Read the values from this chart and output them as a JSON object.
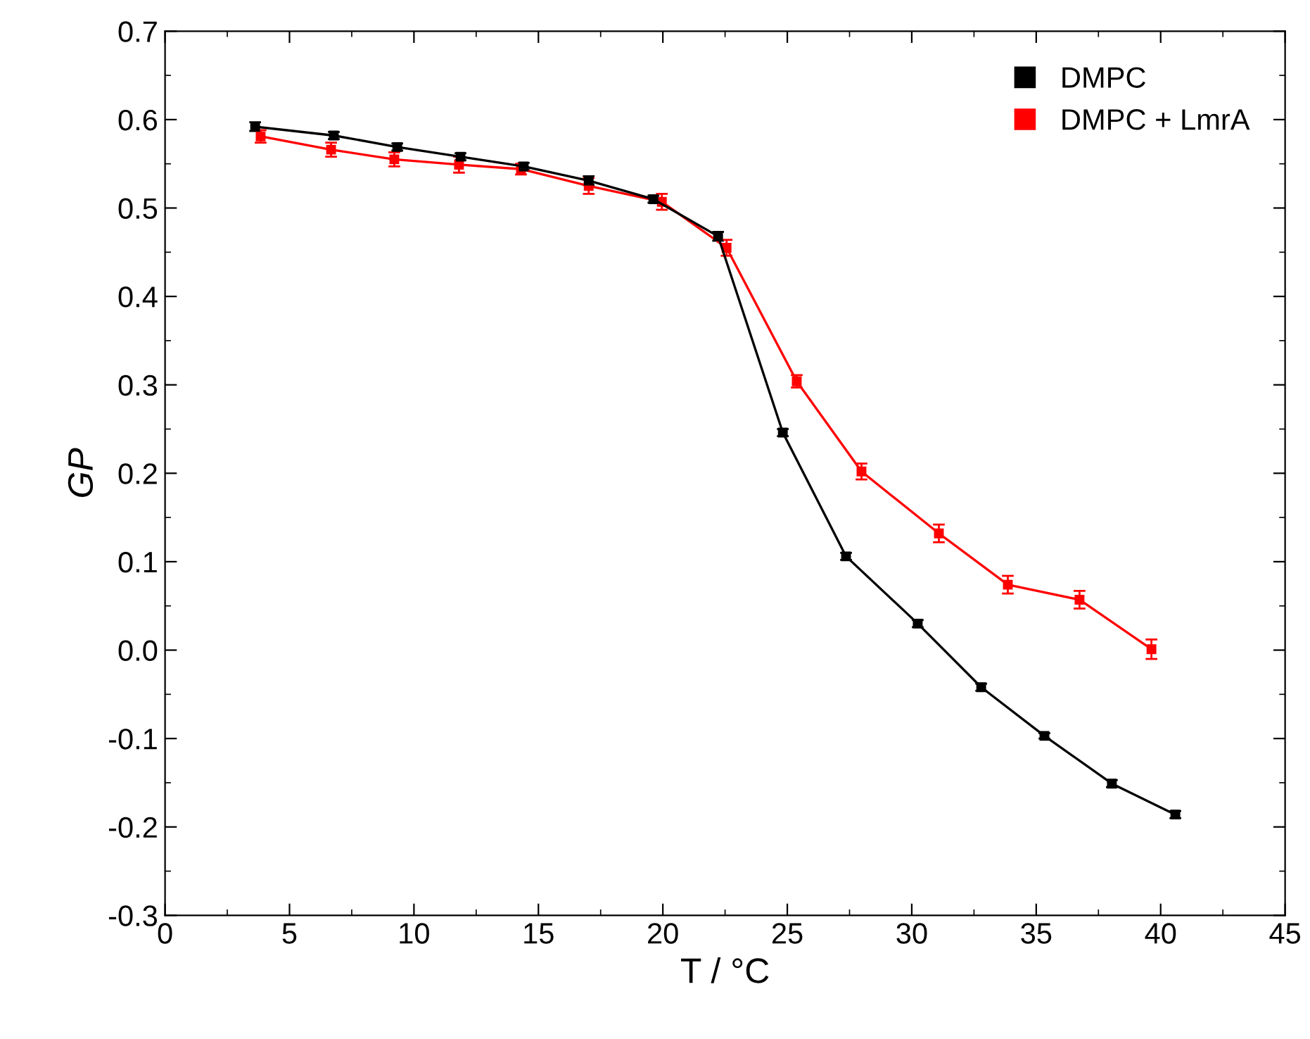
{
  "chart_data": {
    "type": "line",
    "xlabel": "T / °C",
    "ylabel": "GP",
    "xlim": [
      0,
      45
    ],
    "xticks": [
      0,
      5,
      10,
      15,
      20,
      25,
      30,
      35,
      40,
      45
    ],
    "ylim": [
      -0.3,
      0.7
    ],
    "yticks": [
      -0.3,
      -0.2,
      -0.1,
      {
        "value": 0,
        "label": "0.0"
      },
      0.1,
      0.2,
      0.3,
      0.4,
      0.5,
      0.6,
      0.7
    ],
    "marker": "square",
    "line_style": "solid",
    "legend": "top right",
    "grid": false,
    "series": [
      {
        "name": "DMPC",
        "color": "#000000",
        "x": [
          3.62,
          6.78,
          9.33,
          11.87,
          14.41,
          17.02,
          19.62,
          22.22,
          24.82,
          27.36,
          30.24,
          32.79,
          35.33,
          38.04,
          40.59
        ],
        "values": [
          0.592,
          0.582,
          0.569,
          0.558,
          0.547,
          0.531,
          0.51,
          0.468,
          0.246,
          0.106,
          0.03,
          -0.042,
          -0.097,
          -0.151,
          -0.186
        ],
        "errors": [
          0.005,
          0.004,
          0.004,
          0.004,
          0.004,
          0.005,
          0.004,
          0.005,
          0.004,
          0.004,
          0.004,
          0.004,
          0.003,
          0.004,
          0.004
        ]
      },
      {
        "name": "DMPC + LmrA",
        "color": "#ff0000",
        "x": [
          3.84,
          6.67,
          9.21,
          11.81,
          14.3,
          17.02,
          19.96,
          22.56,
          25.38,
          27.98,
          31.09,
          33.86,
          36.74,
          39.63
        ],
        "values": [
          0.581,
          0.566,
          0.555,
          0.549,
          0.544,
          0.525,
          0.507,
          0.455,
          0.304,
          0.202,
          0.132,
          0.074,
          0.057,
          0.001
        ],
        "errors": [
          0.007,
          0.008,
          0.008,
          0.009,
          0.006,
          0.009,
          0.009,
          0.009,
          0.007,
          0.009,
          0.01,
          0.01,
          0.01,
          0.011
        ]
      }
    ]
  }
}
